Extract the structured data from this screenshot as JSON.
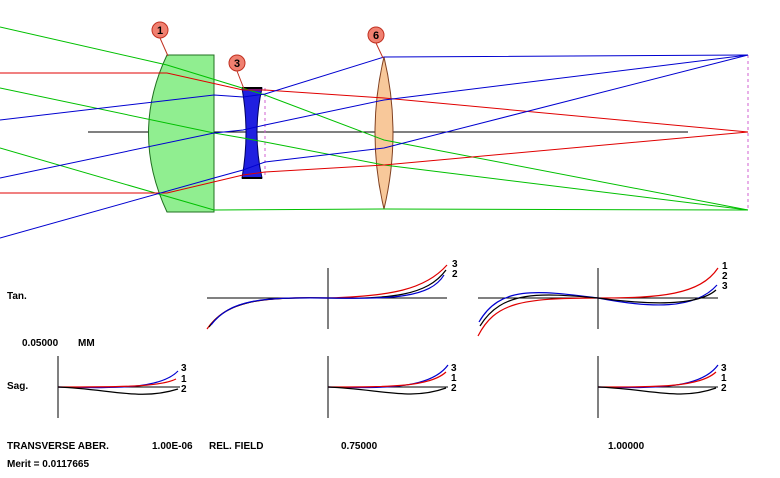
{
  "colors": {
    "ray_green": "#00c000",
    "ray_red": "#e00000",
    "ray_blue": "#0000d0",
    "lens1_fill": "#90ee90",
    "lens3_fill": "#2020e0",
    "lens6_fill": "#f8c89a",
    "callout_fill": "#f08070",
    "image_plane": "#d060d0"
  },
  "layout_view": {
    "surface_callouts": [
      "1",
      "3",
      "6"
    ]
  },
  "aberration_plots": {
    "row_tan_label": "Tan.",
    "row_sag_label": "Sag.",
    "scale_value": "0.05000",
    "scale_unit": "MM",
    "columns": [
      {
        "field_label": "",
        "tan_curve_labels": [],
        "sag_curve_labels": [
          "3",
          "1",
          "2"
        ]
      },
      {
        "field_label": "0.75000",
        "tan_curve_labels": [
          "3",
          "2"
        ],
        "sag_curve_labels": [
          "3",
          "1",
          "2"
        ]
      },
      {
        "field_label": "1.00000",
        "tan_curve_labels": [
          "1",
          "2",
          "3"
        ],
        "sag_curve_labels": [
          "3",
          "1",
          "2"
        ]
      }
    ]
  },
  "footer": {
    "title": "TRANSVERSE ABER.",
    "wavelength": "1.00E-06",
    "field_caption": "REL. FIELD",
    "merit": "Merit = 0.0117665"
  }
}
